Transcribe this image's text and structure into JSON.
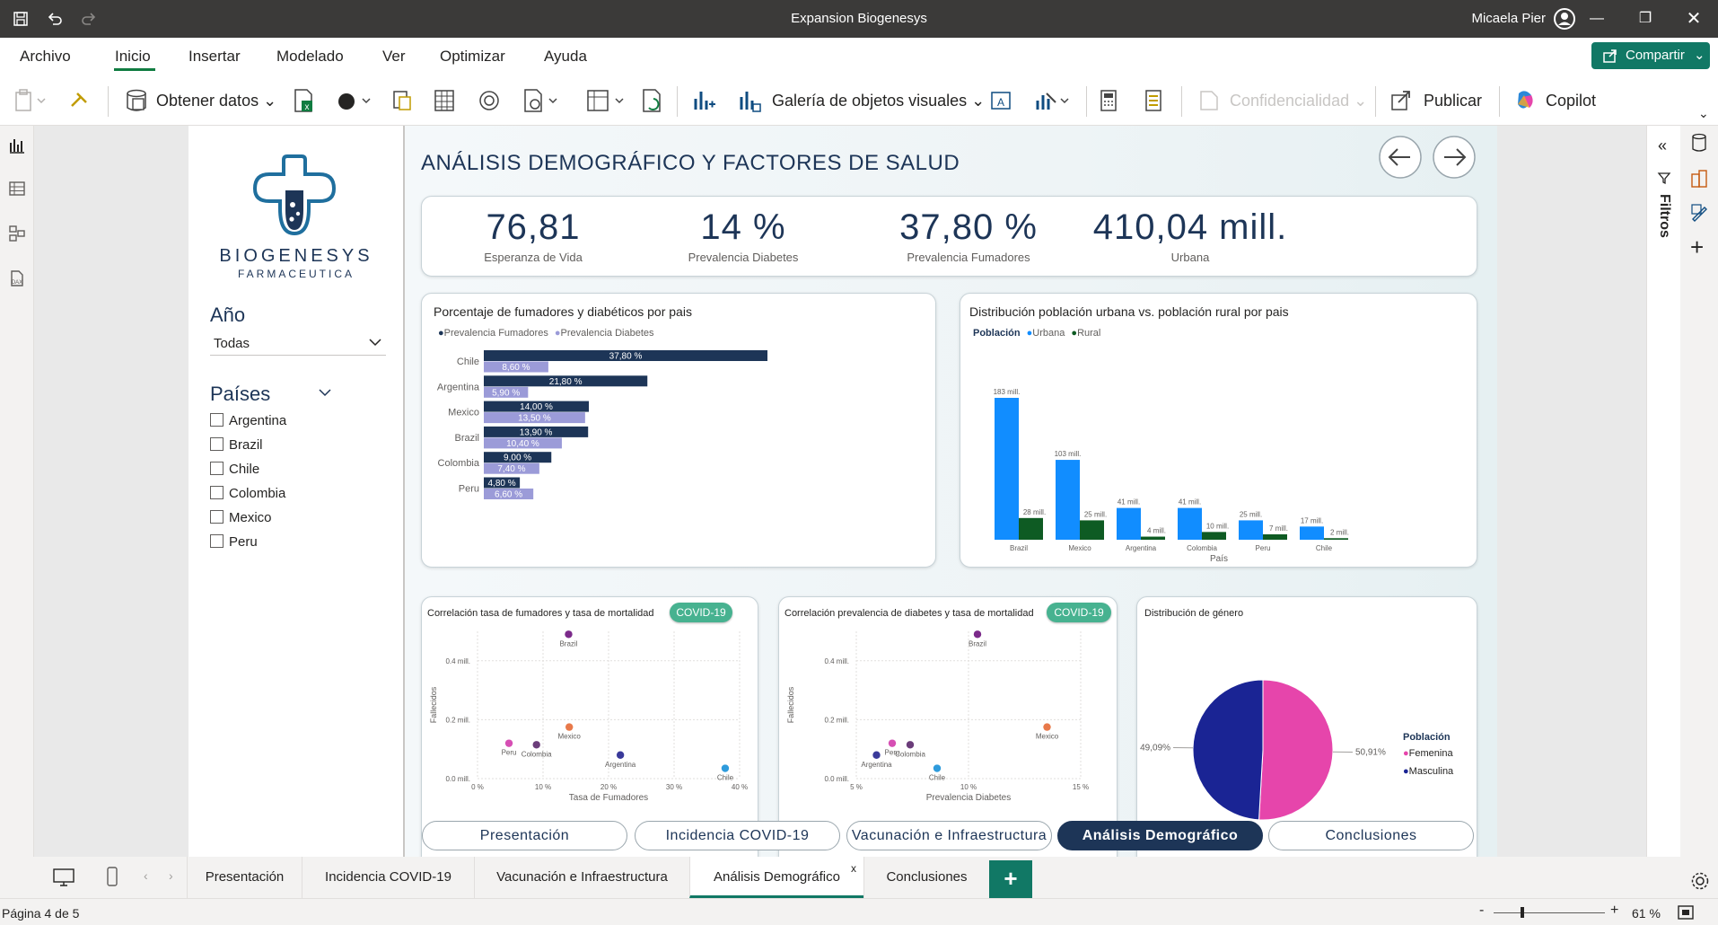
{
  "window": {
    "title": "Expansion Biogenesys",
    "user": "Micaela Pier"
  },
  "menu": {
    "items": [
      "Archivo",
      "Inicio",
      "Insertar",
      "Modelado",
      "Ver",
      "Optimizar",
      "Ayuda"
    ],
    "share_label": "Compartir"
  },
  "toolbar": {
    "get_data": "Obtener datos",
    "visual_gallery": "Galería de objetos visuales",
    "sensitivity": "Confidencialidad",
    "publish": "Publicar",
    "copilot": "Copilot"
  },
  "rightpanel": {
    "filters_label": "Filtros"
  },
  "slicers": {
    "brand": {
      "name": "BIOGENESYS",
      "sub": "FARMACEUTICA"
    },
    "year_label": "Año",
    "year_value": "Todas",
    "countries_label": "Países",
    "countries": [
      "Argentina",
      "Brazil",
      "Chile",
      "Colombia",
      "Mexico",
      "Peru"
    ]
  },
  "report": {
    "title": "ANÁLISIS DEMOGRÁFICO Y FACTORES DE SALUD",
    "kpis": [
      {
        "value": "76,81",
        "label": "Esperanza de Vida"
      },
      {
        "value": "14 %",
        "label": "Prevalencia Diabetes"
      },
      {
        "value": "37,80 %",
        "label": "Prevalencia Fumadores"
      },
      {
        "value": "410,04 mill.",
        "label": "Urbana"
      }
    ],
    "nav": [
      "Presentación",
      "Incidencia COVID-19",
      "Vacunación e Infraestructura",
      "Análisis Demográfico",
      "Conclusiones"
    ],
    "covid_badge": "COVID-19"
  },
  "chart_data": [
    {
      "type": "bar",
      "orientation": "horizontal",
      "title": "Porcentaje de fumadores y diabéticos por pais",
      "categories": [
        "Chile",
        "Argentina",
        "Mexico",
        "Brazil",
        "Colombia",
        "Peru"
      ],
      "series": [
        {
          "name": "Prevalencia Fumadores",
          "values": [
            37.8,
            21.8,
            14.0,
            13.9,
            9.0,
            4.8
          ],
          "labels": [
            "37,80 %",
            "21,80 %",
            "14,00 %",
            "13,90 %",
            "9,00 %",
            "4,80 %"
          ],
          "color": "#1d3557"
        },
        {
          "name": "Prevalencia Diabetes",
          "values": [
            8.6,
            5.9,
            13.5,
            10.4,
            7.4,
            6.6
          ],
          "labels": [
            "8,60 %",
            "5,90 %",
            "13,50 %",
            "10,40 %",
            "7,40 %",
            "6,60 %"
          ],
          "color": "#9b9bd8"
        }
      ]
    },
    {
      "type": "bar",
      "title": "Distribución población urbana vs. población rural por pais",
      "legend_title": "Población",
      "xlabel": "País",
      "categories": [
        "Brazil",
        "Mexico",
        "Argentina",
        "Colombia",
        "Peru",
        "Chile"
      ],
      "series": [
        {
          "name": "Urbana",
          "values": [
            183,
            103,
            41,
            41,
            25,
            17
          ],
          "labels": [
            "183 mill.",
            "103 mill.",
            "41 mill.",
            "41 mill.",
            "25 mill.",
            "17 mill."
          ],
          "color": "#118dff"
        },
        {
          "name": "Rural",
          "values": [
            28,
            25,
            4,
            10,
            7,
            2
          ],
          "labels": [
            "28 mill.",
            "25 mill.",
            "4 mill.",
            "10 mill.",
            "7 mill.",
            "2 mill."
          ],
          "color": "#0e5b23"
        }
      ]
    },
    {
      "type": "scatter",
      "title": "Correlación tasa de fumadores y tasa de mortalidad",
      "xlabel": "Tasa de Fumadores",
      "ylabel": "Fallecidos",
      "xlim": [
        0,
        40
      ],
      "ylim": [
        0,
        0.5
      ],
      "xticks": [
        "0 %",
        "10 %",
        "20 %",
        "30 %",
        "40 %"
      ],
      "yticks": [
        "0.0 mill.",
        "0.2 mill.",
        "0.4 mill."
      ],
      "points": [
        {
          "label": "Brazil",
          "x": 13.9,
          "y": 0.49,
          "color": "#7b2a8a"
        },
        {
          "label": "Mexico",
          "x": 14.0,
          "y": 0.175,
          "color": "#e8794a"
        },
        {
          "label": "Peru",
          "x": 4.8,
          "y": 0.12,
          "color": "#d64fb4"
        },
        {
          "label": "Colombia",
          "x": 9.0,
          "y": 0.115,
          "color": "#6b3d7a"
        },
        {
          "label": "Argentina",
          "x": 21.8,
          "y": 0.08,
          "color": "#3a3a9a"
        },
        {
          "label": "Chile",
          "x": 37.8,
          "y": 0.035,
          "color": "#2e9bdc"
        }
      ]
    },
    {
      "type": "scatter",
      "title": "Correlación prevalencia de diabetes y tasa de mortalidad",
      "xlabel": "Prevalencia Diabetes",
      "ylabel": "Fallecidos",
      "xlim": [
        5,
        15
      ],
      "ylim": [
        0,
        0.5
      ],
      "xticks": [
        "5 %",
        "10 %",
        "15 %"
      ],
      "yticks": [
        "0.0 mill.",
        "0.2 mill.",
        "0.4 mill."
      ],
      "points": [
        {
          "label": "Brazil",
          "x": 10.4,
          "y": 0.49,
          "color": "#7b2a8a"
        },
        {
          "label": "Mexico",
          "x": 13.5,
          "y": 0.175,
          "color": "#e8794a"
        },
        {
          "label": "Colombia",
          "x": 7.4,
          "y": 0.115,
          "color": "#6b3d7a"
        },
        {
          "label": "Peru",
          "x": 6.6,
          "y": 0.12,
          "color": "#d64fb4"
        },
        {
          "label": "Argentina",
          "x": 5.9,
          "y": 0.08,
          "color": "#3a3a9a"
        },
        {
          "label": "Chile",
          "x": 8.6,
          "y": 0.035,
          "color": "#2e9bdc"
        }
      ]
    },
    {
      "type": "pie",
      "title": "Distribución de género",
      "legend_title": "Población",
      "slices": [
        {
          "name": "Femenina",
          "value": 50.91,
          "label": "50,91%",
          "color": "#e645ab"
        },
        {
          "name": "Masculina",
          "value": 49.09,
          "label": "49,09%",
          "color": "#1a2494"
        }
      ]
    }
  ],
  "pages": {
    "tabs": [
      "Presentación",
      "Incidencia COVID-19",
      "Vacunación e Infraestructura",
      "Análisis Demográfico",
      "Conclusiones"
    ],
    "active": 3
  },
  "status": {
    "page": "Página 4 de 5",
    "zoom": "61 %"
  }
}
